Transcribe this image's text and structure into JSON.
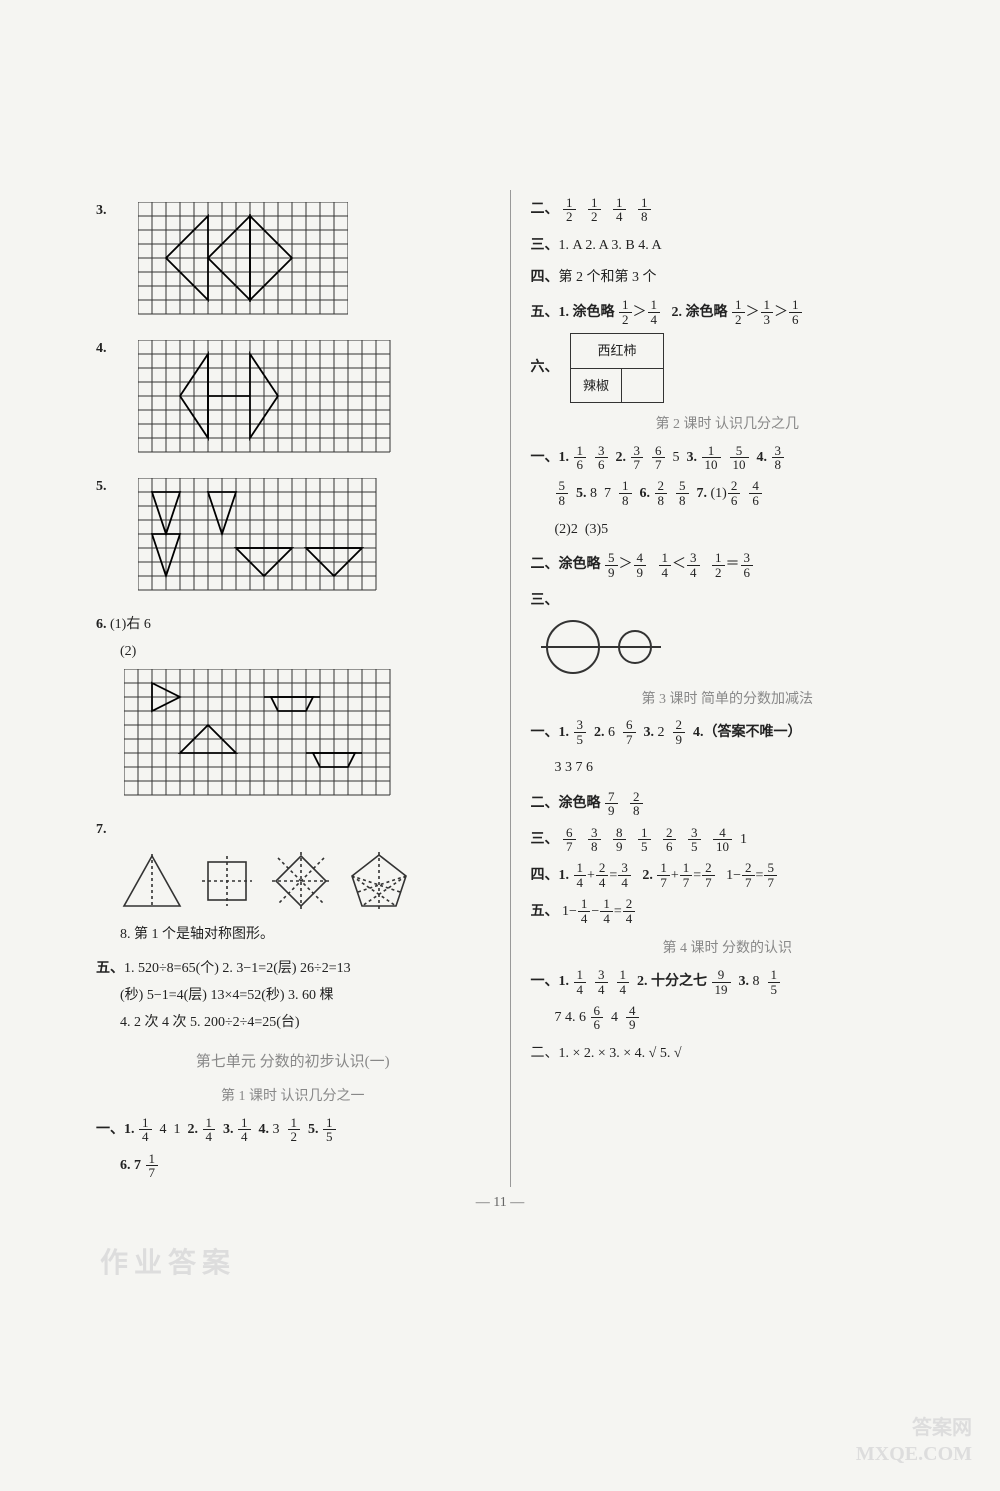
{
  "page_number": "— 11 —",
  "watermark_bl": "作业答案",
  "watermark_br1": "答案网",
  "watermark_br2": "MXQE.COM",
  "left": {
    "q3": "3.",
    "q4": "4.",
    "q5": "5.",
    "q6_label": "6.",
    "q6_1": "(1)右  6",
    "q6_2": "(2)",
    "q7": "7.",
    "q8": "8. 第 1 个是轴对称图形。",
    "five_label": "五、",
    "five_1": "1. 520÷8=65(个)  2. 3−1=2(层)  26÷2=13",
    "five_1b": "(秒)  5−1=4(层)  13×4=52(秒)  3. 60 棵",
    "five_4": "4. 2 次  4 次  5. 200÷2÷4=25(台)",
    "unit7_title": "第七单元  分数的初步认识(一)",
    "lesson1_title": "第 1 课时  认识几分之一",
    "l1_one_label": "一、",
    "l1_six": "6. 7 "
  },
  "right": {
    "two_label": "二、",
    "three_label": "三、",
    "three_text": "1. A  2. A  3. B  4. A",
    "four_label": "四、",
    "four_text": "第 2 个和第 3 个",
    "five_label": "五、",
    "five_1a": "1. 涂色略 ",
    "five_2a": "2. 涂色略 ",
    "six_label": "六、",
    "t_tomato": "西红柿",
    "t_pepper": "辣椒",
    "lesson2_title": "第 2 课时  认识几分之几",
    "l2_one_label": "一、",
    "l2_two_label": "二、涂色略  ",
    "l2_three_label": "三、",
    "lesson3_title": "第 3 课时  简单的分数加减法",
    "l3_one_label": "一、",
    "l3_one_4tail": "4.（答案不唯一）",
    "l3_one_line2": "3  3  7  6",
    "l3_two_label": "二、涂色略  ",
    "l3_three_label": "三、",
    "l3_four_label": "四、",
    "l3_five_label": "五、",
    "lesson4_title": "第 4 课时  分数的认识",
    "l4_one_label": "一、",
    "l4_one_2a": "2. 十分之七 ",
    "l4_one_line2a": "7  4. 6 ",
    "l4_two": "二、1. ×  2. ×  3. ×  4. √  5. √"
  },
  "fractions": {
    "1_2": {
      "n": "1",
      "d": "2"
    },
    "1_4": {
      "n": "1",
      "d": "4"
    },
    "1_8": {
      "n": "1",
      "d": "8"
    },
    "1_3": {
      "n": "1",
      "d": "3"
    },
    "1_6": {
      "n": "1",
      "d": "6"
    },
    "1_5": {
      "n": "1",
      "d": "5"
    },
    "1_7": {
      "n": "1",
      "d": "7"
    },
    "3_6": {
      "n": "3",
      "d": "6"
    },
    "3_7": {
      "n": "3",
      "d": "7"
    },
    "6_7": {
      "n": "6",
      "d": "7"
    },
    "1_10": {
      "n": "1",
      "d": "10"
    },
    "5_10": {
      "n": "5",
      "d": "10"
    },
    "3_8": {
      "n": "3",
      "d": "8"
    },
    "5_8": {
      "n": "5",
      "d": "8"
    },
    "2_8": {
      "n": "2",
      "d": "8"
    },
    "2_6": {
      "n": "2",
      "d": "6"
    },
    "4_6": {
      "n": "4",
      "d": "6"
    },
    "5_9": {
      "n": "5",
      "d": "9"
    },
    "4_9": {
      "n": "4",
      "d": "9"
    },
    "3_4": {
      "n": "3",
      "d": "4"
    },
    "3_5": {
      "n": "3",
      "d": "5"
    },
    "2_9": {
      "n": "2",
      "d": "9"
    },
    "7_9": {
      "n": "7",
      "d": "9"
    },
    "8_9": {
      "n": "8",
      "d": "9"
    },
    "2_4": {
      "n": "2",
      "d": "4"
    },
    "2_7": {
      "n": "2",
      "d": "7"
    },
    "5_7": {
      "n": "5",
      "d": "7"
    },
    "9_19": {
      "n": "9",
      "d": "19"
    },
    "6_6": {
      "n": "6",
      "d": "6"
    },
    "4_10": {
      "n": "4",
      "d": "10"
    }
  },
  "grids": {
    "g3": {
      "cols": 15,
      "rows": 8
    },
    "g4": {
      "cols": 18,
      "rows": 8
    },
    "g5": {
      "cols": 17,
      "rows": 8
    },
    "g6": {
      "cols": 19,
      "rows": 9
    }
  }
}
